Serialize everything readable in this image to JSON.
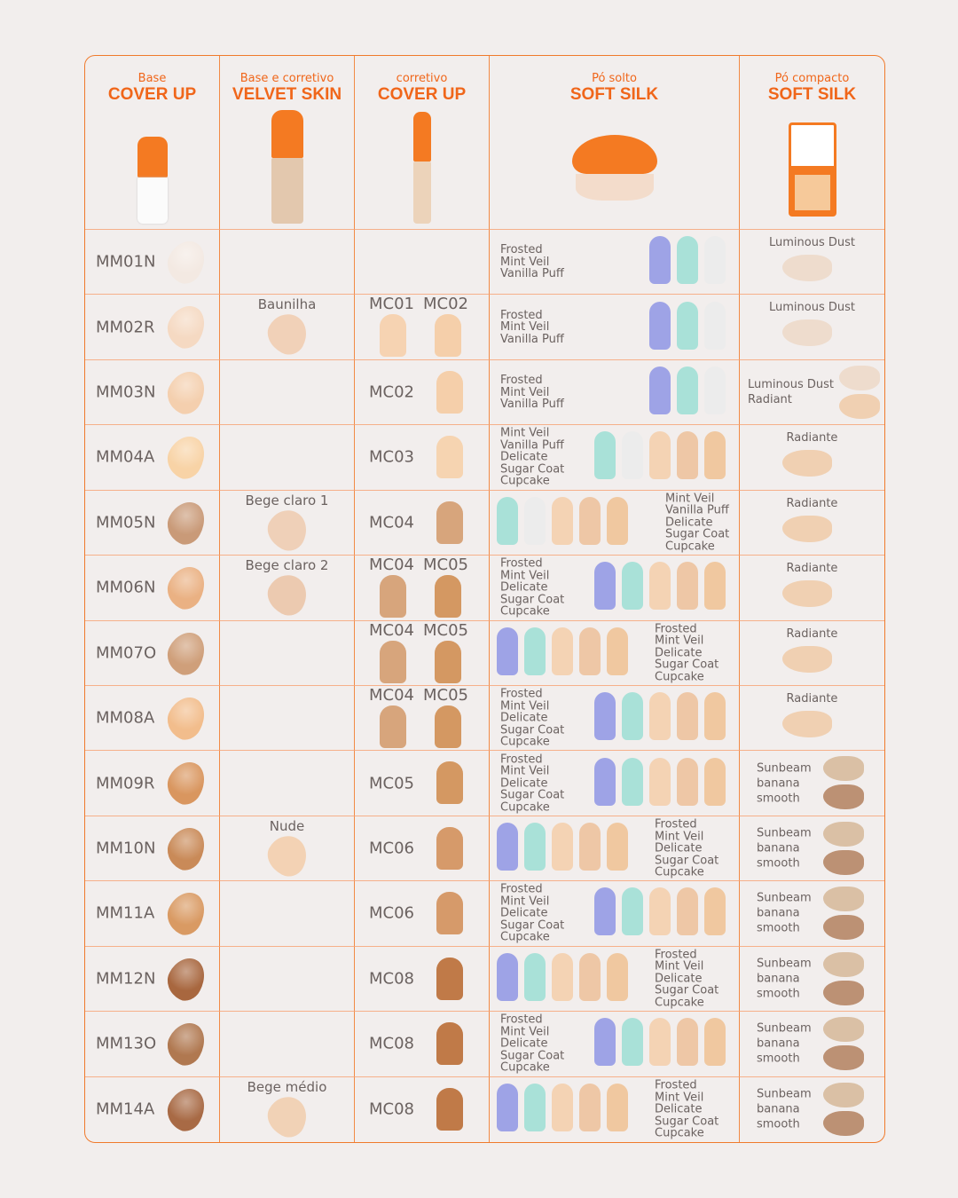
{
  "headers": [
    {
      "small": "Base",
      "big": "COVER UP",
      "product": "cover-up-foundation"
    },
    {
      "small": "Base e corretivo",
      "big": "VELVET SKIN",
      "product": "velvet-skin-bottle"
    },
    {
      "small": "corretivo",
      "big": "COVER UP",
      "product": "cover-up-concealer"
    },
    {
      "small": "Pó solto",
      "big": "SOFT SILK",
      "product": "soft-silk-loose-powder"
    },
    {
      "small": "Pó compacto",
      "big": "SOFT SILK",
      "product": "soft-silk-compact"
    }
  ],
  "colors": {
    "accent": "#f0661a",
    "border": "#f07a2c",
    "bg": "#f2eeed",
    "text": "#6b6260"
  },
  "shade_colors": {
    "Frosted": "#9ea3e6",
    "Mint Veil": "#a9e1d8",
    "Vanilla Puff": "#ececec",
    "Delicate": "#f4d3b4",
    "Sugar Coat": "#eec7a6",
    "Cupcake": "#f0c8a0",
    "Luminous Dust": "#f0dccb",
    "Radiant": "#f3cfae",
    "Radiante": "#f3cfae",
    "Sunbeam": "#c9a080"
  },
  "rows": [
    {
      "base": "MM01N",
      "base_color": "#f3e9e2",
      "velvet": null,
      "corr": [],
      "loose": {
        "labels": [
          "Frosted",
          "Mint Veil",
          "Vanilla Puff"
        ],
        "side": "left",
        "swatches": [
          "Frosted",
          "Mint Veil",
          "Vanilla Puff"
        ]
      },
      "compact": {
        "labels": [
          "Luminous Dust"
        ],
        "layout": "top",
        "swatches": [
          "#f0dccb"
        ]
      }
    },
    {
      "base": "MM02R",
      "base_color": "#f5d9c2",
      "velvet": {
        "label": "Baunilha",
        "color": "#f1d1b8"
      },
      "corr": [
        {
          "label": "MC01",
          "color": "#f6d3b2"
        },
        {
          "label": "MC02",
          "color": "#f5cfaa"
        }
      ],
      "loose": {
        "labels": [
          "Frosted",
          "Mint Veil",
          "Vanilla Puff"
        ],
        "side": "left",
        "swatches": [
          "Frosted",
          "Mint Veil",
          "Vanilla Puff"
        ]
      },
      "compact": {
        "labels": [
          "Luminous Dust"
        ],
        "layout": "top",
        "swatches": [
          "#f0dccb"
        ]
      }
    },
    {
      "base": "MM03N",
      "base_color": "#f4cfae",
      "velvet": null,
      "corr": [
        {
          "label": "MC02",
          "color": "#f5cfaa"
        }
      ],
      "loose": {
        "labels": [
          "Frosted",
          "Mint Veil",
          "Vanilla Puff"
        ],
        "side": "left",
        "swatches": [
          "Frosted",
          "Mint Veil",
          "Vanilla Puff"
        ]
      },
      "compact": {
        "labels": [
          "Luminous Dust",
          "Radiant"
        ],
        "layout": "side",
        "swatches": [
          "#f0dccb",
          "#f3cfae"
        ]
      }
    },
    {
      "base": "MM04A",
      "base_color": "#f8d3a6",
      "velvet": null,
      "corr": [
        {
          "label": "MC03",
          "color": "#f6d4b1"
        }
      ],
      "loose": {
        "labels": [
          "Mint Veil",
          "Vanilla Puff",
          "Delicate",
          "Sugar Coat",
          "Cupcake"
        ],
        "side": "left",
        "swatches": [
          "Mint Veil",
          "Vanilla Puff",
          "Delicate",
          "Sugar Coat",
          "Cupcake"
        ]
      },
      "compact": {
        "labels": [
          "Radiante"
        ],
        "layout": "top",
        "swatches": [
          "#f3cfae"
        ]
      }
    },
    {
      "base": "MM05N",
      "base_color": "#c99a78",
      "velvet": {
        "label": "Bege claro 1",
        "color": "#efd0b8"
      },
      "corr": [
        {
          "label": "MC04",
          "color": "#d7a57c"
        }
      ],
      "loose": {
        "labels": [
          "Mint Veil",
          "Vanilla Puff",
          "Delicate",
          "Sugar Coat",
          "Cupcake"
        ],
        "side": "right",
        "swatches": [
          "Mint Veil",
          "Vanilla Puff",
          "Delicate",
          "Sugar Coat",
          "Cupcake"
        ]
      },
      "compact": {
        "labels": [
          "Radiante"
        ],
        "layout": "top",
        "swatches": [
          "#f3cfae"
        ]
      }
    },
    {
      "base": "MM06N",
      "base_color": "#eab183",
      "velvet": {
        "label": "Bege claro 2",
        "color": "#eccab0"
      },
      "corr": [
        {
          "label": "MC04",
          "color": "#d7a57c"
        },
        {
          "label": "MC05",
          "color": "#d49862"
        }
      ],
      "loose": {
        "labels": [
          "Frosted",
          "Mint Veil",
          "Delicate",
          "Sugar Coat",
          "Cupcake"
        ],
        "side": "left",
        "swatches": [
          "Frosted",
          "Mint Veil",
          "Delicate",
          "Sugar Coat",
          "Cupcake"
        ]
      },
      "compact": {
        "labels": [
          "Radiante"
        ],
        "layout": "top",
        "swatches": [
          "#f3cfae"
        ]
      }
    },
    {
      "base": "MM07O",
      "base_color": "#cf9f7a",
      "velvet": null,
      "corr": [
        {
          "label": "MC04",
          "color": "#d7a57c"
        },
        {
          "label": "MC05",
          "color": "#d49862"
        }
      ],
      "loose": {
        "labels": [
          "Frosted",
          "Mint Veil",
          "Delicate",
          "Sugar Coat",
          "Cupcake"
        ],
        "side": "right",
        "swatches": [
          "Frosted",
          "Mint Veil",
          "Delicate",
          "Sugar Coat",
          "Cupcake"
        ]
      },
      "compact": {
        "labels": [
          "Radiante"
        ],
        "layout": "top",
        "swatches": [
          "#f3cfae"
        ]
      }
    },
    {
      "base": "MM08A",
      "base_color": "#f2bd8c",
      "velvet": null,
      "corr": [
        {
          "label": "MC04",
          "color": "#d7a57c"
        },
        {
          "label": "MC05",
          "color": "#d49862"
        }
      ],
      "loose": {
        "labels": [
          "Frosted",
          "Mint Veil",
          "Delicate",
          "Sugar Coat",
          "Cupcake"
        ],
        "side": "left",
        "swatches": [
          "Frosted",
          "Mint Veil",
          "Delicate",
          "Sugar Coat",
          "Cupcake"
        ]
      },
      "compact": {
        "labels": [
          "Radiante"
        ],
        "layout": "top",
        "swatches": [
          "#f3cfae"
        ]
      }
    },
    {
      "base": "MM09R",
      "base_color": "#d9965f",
      "velvet": null,
      "corr": [
        {
          "label": "MC05",
          "color": "#d49862"
        }
      ],
      "loose": {
        "labels": [
          "Frosted",
          "Mint Veil",
          "Delicate",
          "Sugar Coat",
          "Cupcake"
        ],
        "side": "left",
        "swatches": [
          "Frosted",
          "Mint Veil",
          "Delicate",
          "Sugar Coat",
          "Cupcake"
        ]
      },
      "compact": {
        "labels": [
          "Sunbeam",
          "banana",
          "smooth"
        ],
        "layout": "side",
        "swatches": [
          "#dcc0a2",
          "#c09070"
        ]
      }
    },
    {
      "base": "MM10N",
      "base_color": "#c98a58",
      "velvet": {
        "label": "Nude",
        "color": "#f3d2b4"
      },
      "corr": [
        {
          "label": "MC06",
          "color": "#d69a6a"
        }
      ],
      "loose": {
        "labels": [
          "Frosted",
          "Mint Veil",
          "Delicate",
          "Sugar Coat",
          "Cupcake"
        ],
        "side": "right",
        "swatches": [
          "Frosted",
          "Mint Veil",
          "Delicate",
          "Sugar Coat",
          "Cupcake"
        ]
      },
      "compact": {
        "labels": [
          "Sunbeam",
          "banana",
          "smooth"
        ],
        "layout": "side",
        "swatches": [
          "#dcc0a2",
          "#c09070"
        ]
      }
    },
    {
      "base": "MM11A",
      "base_color": "#d99a63",
      "velvet": null,
      "corr": [
        {
          "label": "MC06",
          "color": "#d69a6a"
        }
      ],
      "loose": {
        "labels": [
          "Frosted",
          "Mint Veil",
          "Delicate",
          "Sugar Coat",
          "Cupcake"
        ],
        "side": "left",
        "swatches": [
          "Frosted",
          "Mint Veil",
          "Delicate",
          "Sugar Coat",
          "Cupcake"
        ]
      },
      "compact": {
        "labels": [
          "Sunbeam",
          "banana",
          "smooth"
        ],
        "layout": "side",
        "swatches": [
          "#dcc0a2",
          "#c09070"
        ]
      }
    },
    {
      "base": "MM12N",
      "base_color": "#a8673f",
      "velvet": null,
      "corr": [
        {
          "label": "MC08",
          "color": "#c07a48"
        }
      ],
      "loose": {
        "labels": [
          "Frosted",
          "Mint Veil",
          "Delicate",
          "Sugar Coat",
          "Cupcake"
        ],
        "side": "right",
        "swatches": [
          "Frosted",
          "Mint Veil",
          "Delicate",
          "Sugar Coat",
          "Cupcake"
        ]
      },
      "compact": {
        "labels": [
          "Sunbeam",
          "banana",
          "smooth"
        ],
        "layout": "side",
        "swatches": [
          "#dcc0a2",
          "#c09070"
        ]
      }
    },
    {
      "base": "MM13O",
      "base_color": "#b07850",
      "velvet": null,
      "corr": [
        {
          "label": "MC08",
          "color": "#c07a48"
        }
      ],
      "loose": {
        "labels": [
          "Frosted",
          "Mint Veil",
          "Delicate",
          "Sugar Coat",
          "Cupcake"
        ],
        "side": "left",
        "swatches": [
          "Frosted",
          "Mint Veil",
          "Delicate",
          "Sugar Coat",
          "Cupcake"
        ]
      },
      "compact": {
        "labels": [
          "Sunbeam",
          "banana",
          "smooth"
        ],
        "layout": "side",
        "swatches": [
          "#dcc0a2",
          "#c09070"
        ]
      }
    },
    {
      "base": "MM14A",
      "base_color": "#a86a45",
      "velvet": {
        "label": "Bege médio",
        "color": "#f1d2b6"
      },
      "corr": [
        {
          "label": "MC08",
          "color": "#c07a48"
        }
      ],
      "loose": {
        "labels": [
          "Frosted",
          "Mint Veil",
          "Delicate",
          "Sugar Coat",
          "Cupcake"
        ],
        "side": "right",
        "swatches": [
          "Frosted",
          "Mint Veil",
          "Delicate",
          "Sugar Coat",
          "Cupcake"
        ]
      },
      "compact": {
        "labels": [
          "Sunbeam",
          "banana",
          "smooth"
        ],
        "layout": "side",
        "swatches": [
          "#dcc0a2",
          "#c09070"
        ]
      }
    }
  ]
}
